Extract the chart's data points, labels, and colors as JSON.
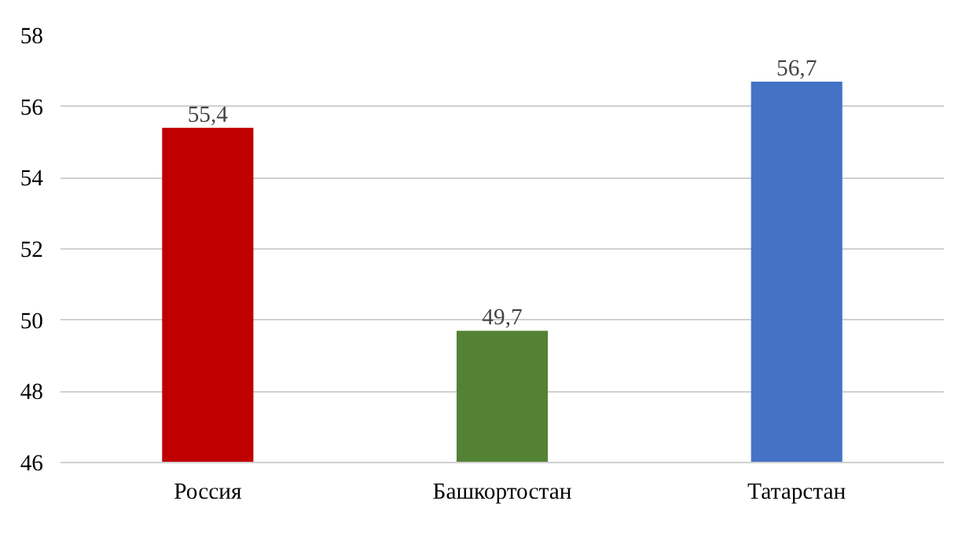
{
  "chart_data": {
    "type": "bar",
    "categories": [
      "Россия",
      "Башкортостан",
      "Татарстан"
    ],
    "values": [
      55.4,
      49.7,
      56.7
    ],
    "colors": [
      "#c00000",
      "#548235",
      "#4472c4"
    ],
    "value_labels": [
      "55,4",
      "49,7",
      "56,7"
    ],
    "ylim": [
      46,
      58
    ],
    "yticks": [
      46,
      48,
      50,
      52,
      54,
      56,
      58
    ],
    "grid": "y"
  }
}
